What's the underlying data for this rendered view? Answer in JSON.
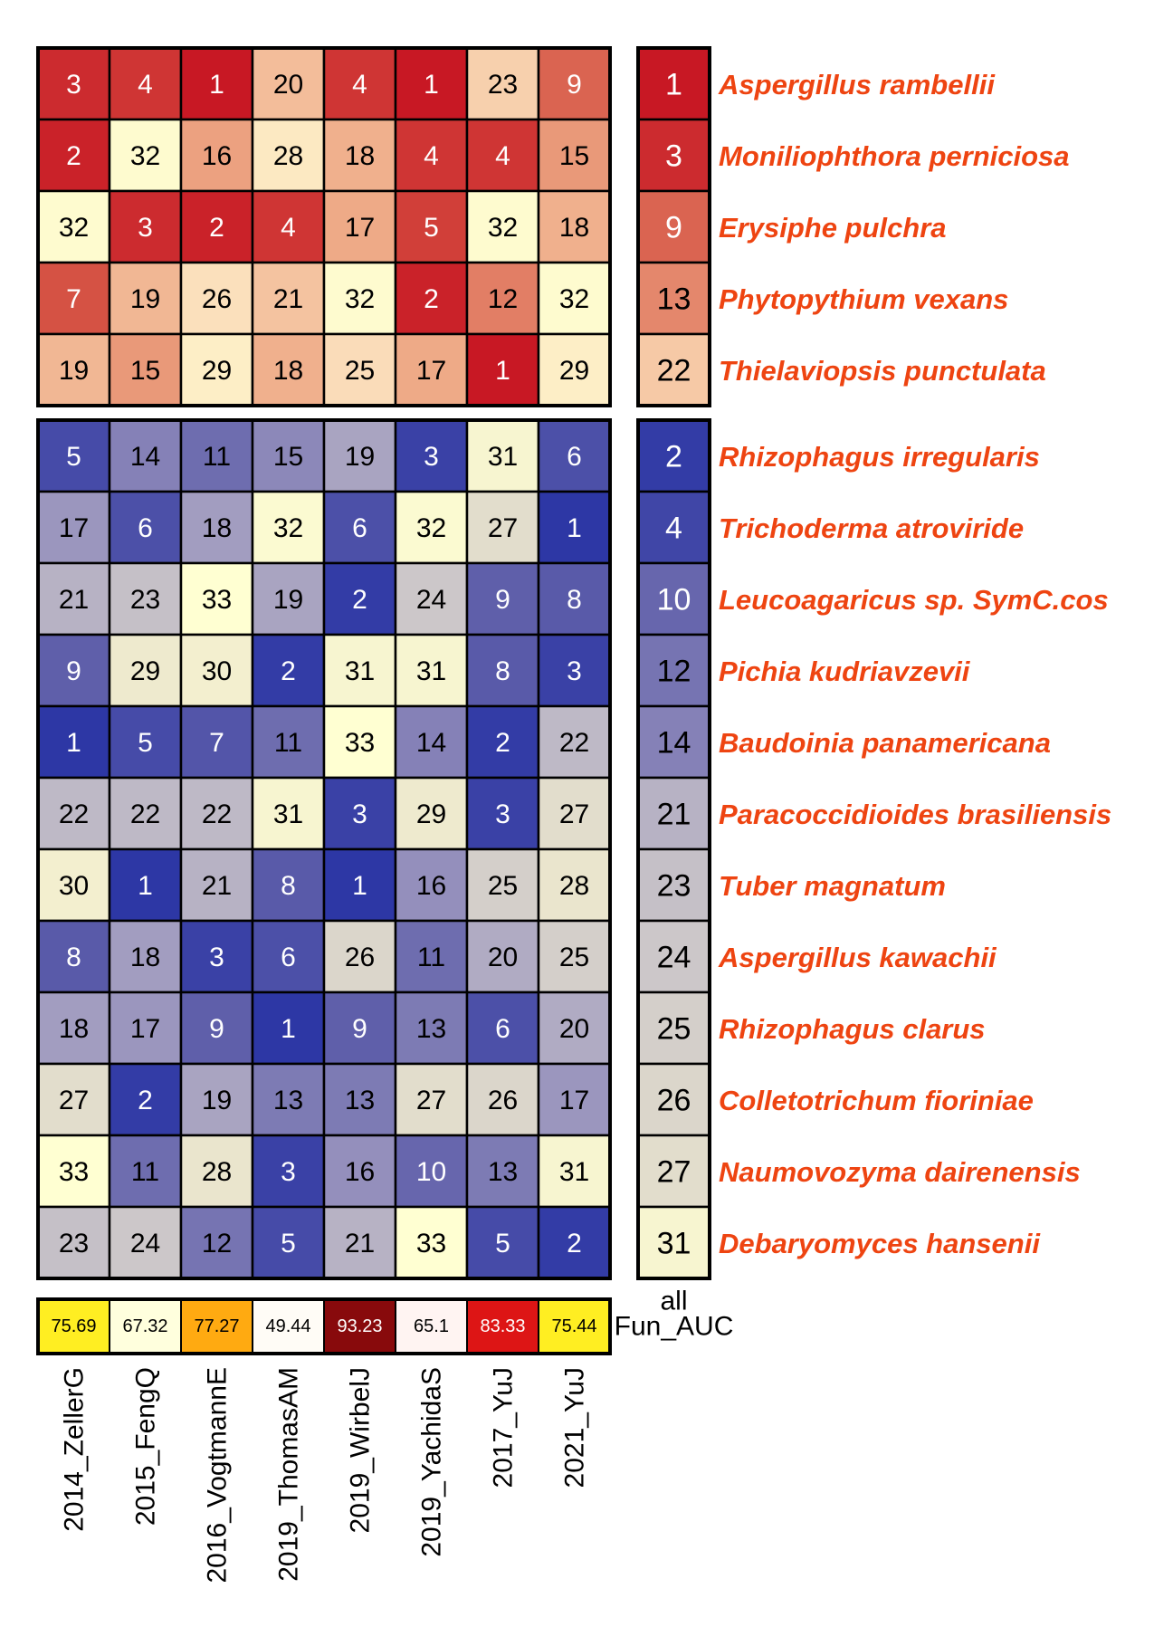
{
  "chart_data": {
    "type": "heatmap",
    "columns": [
      "2014_ZellerG",
      "2015_FengQ",
      "2016_VogtmannE",
      "2019_ThomasAM",
      "2019_WirbelJ",
      "2019_YachidaS",
      "2017_YuJ",
      "2021_YuJ"
    ],
    "all_label": "all",
    "auc_label": "Fun_AUC",
    "groups": [
      {
        "palette": "red",
        "rows": [
          {
            "species": "Aspergillus rambellii",
            "ranks": [
              3,
              4,
              1,
              20,
              4,
              1,
              23,
              9
            ],
            "all": 1
          },
          {
            "species": "Moniliophthora perniciosa",
            "ranks": [
              2,
              32,
              16,
              28,
              18,
              4,
              4,
              15
            ],
            "all": 3
          },
          {
            "species": "Erysiphe pulchra",
            "ranks": [
              32,
              3,
              2,
              4,
              17,
              5,
              32,
              18
            ],
            "all": 9
          },
          {
            "species": "Phytopythium vexans",
            "ranks": [
              7,
              19,
              26,
              21,
              32,
              2,
              12,
              32
            ],
            "all": 13
          },
          {
            "species": "Thielaviopsis punctulata",
            "ranks": [
              19,
              15,
              29,
              18,
              25,
              17,
              1,
              29
            ],
            "all": 22
          }
        ]
      },
      {
        "palette": "blue",
        "rows": [
          {
            "species": "Rhizophagus irregularis",
            "ranks": [
              5,
              14,
              11,
              15,
              19,
              3,
              31,
              6
            ],
            "all": 2
          },
          {
            "species": "Trichoderma atroviride",
            "ranks": [
              17,
              6,
              18,
              32,
              6,
              32,
              27,
              1
            ],
            "all": 4
          },
          {
            "species": "Leucoagaricus sp. SymC.cos",
            "ranks": [
              21,
              23,
              33,
              19,
              2,
              24,
              9,
              8
            ],
            "all": 10
          },
          {
            "species": "Pichia kudriavzevii",
            "ranks": [
              9,
              29,
              30,
              2,
              31,
              31,
              8,
              3
            ],
            "all": 12
          },
          {
            "species": "Baudoinia panamericana",
            "ranks": [
              1,
              5,
              7,
              11,
              33,
              14,
              2,
              22
            ],
            "all": 14
          },
          {
            "species": "Paracoccidioides brasiliensis",
            "ranks": [
              22,
              22,
              22,
              31,
              3,
              29,
              3,
              27
            ],
            "all": 21
          },
          {
            "species": "Tuber magnatum",
            "ranks": [
              30,
              1,
              21,
              8,
              1,
              16,
              25,
              28
            ],
            "all": 23
          },
          {
            "species": "Aspergillus kawachii",
            "ranks": [
              8,
              18,
              3,
              6,
              26,
              11,
              20,
              25
            ],
            "all": 24
          },
          {
            "species": "Rhizophagus clarus",
            "ranks": [
              18,
              17,
              9,
              1,
              9,
              13,
              6,
              20
            ],
            "all": 25
          },
          {
            "species": "Colletotrichum fioriniae",
            "ranks": [
              27,
              2,
              19,
              13,
              13,
              27,
              26,
              17
            ],
            "all": 26
          },
          {
            "species": "Naumovozyma dairenensis",
            "ranks": [
              33,
              11,
              28,
              3,
              16,
              10,
              13,
              31
            ],
            "all": 27
          },
          {
            "species": "Debaryomyces hansenii",
            "ranks": [
              23,
              24,
              12,
              5,
              21,
              33,
              5,
              2
            ],
            "all": 31
          }
        ]
      }
    ],
    "auc": [
      75.69,
      67.32,
      77.27,
      49.44,
      93.23,
      65.1,
      83.33,
      75.44
    ],
    "auc_colors": [
      "#ffee22",
      "#ffffdd",
      "#ffaa11",
      "#fffcf6",
      "#880a0c",
      "#fff4f2",
      "#dd1515",
      "#ffee22"
    ]
  }
}
